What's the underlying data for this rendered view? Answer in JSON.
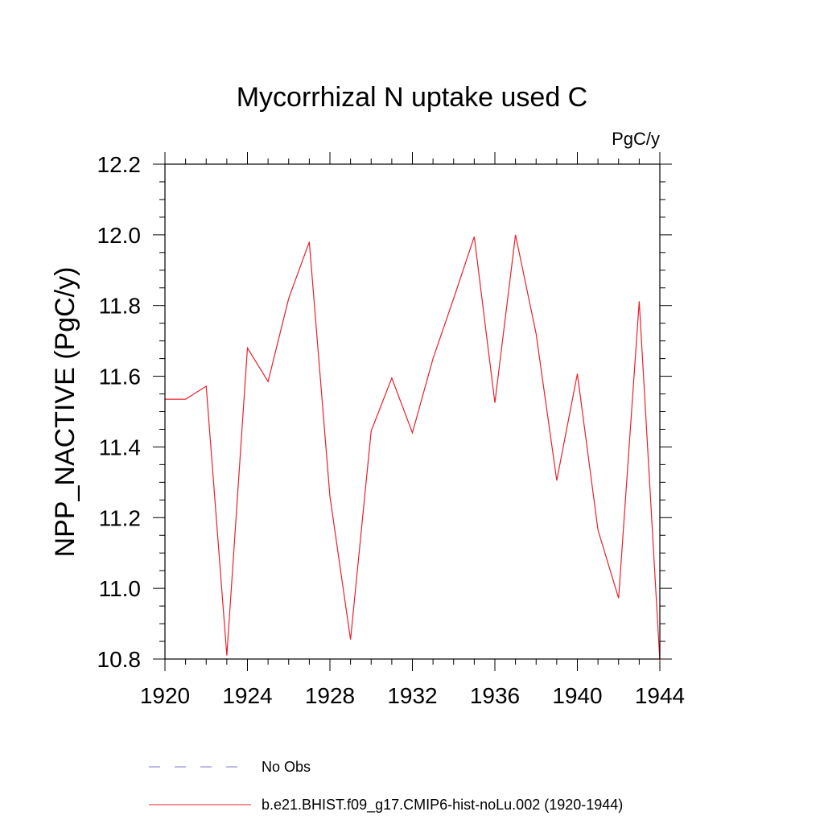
{
  "chart_data": {
    "type": "line",
    "title": "Mycorrhizal N uptake used C",
    "units_label": "PgC/y",
    "ylabel": "NPP_NACTIVE  (PgC/y)",
    "xlabel": "",
    "xlim": [
      1920,
      1944
    ],
    "ylim": [
      10.8,
      12.2
    ],
    "x_ticks": [
      1920,
      1924,
      1928,
      1932,
      1936,
      1940,
      1944
    ],
    "y_ticks": [
      10.8,
      11.0,
      11.2,
      11.4,
      11.6,
      11.8,
      12.0,
      12.2
    ],
    "x_tick_labels": [
      "1920",
      "1924",
      "1928",
      "1932",
      "1936",
      "1940",
      "1944"
    ],
    "y_tick_labels": [
      "10.8",
      "11.0",
      "11.2",
      "11.4",
      "11.6",
      "11.8",
      "12.0",
      "12.2"
    ],
    "grid": false,
    "legend_placement": "bottom",
    "series": [
      {
        "name": "No Obs",
        "color": "#7b7bd6",
        "style": "dashed",
        "x": [],
        "values": []
      },
      {
        "name": "b.e21.BHIST.f09_g17.CMIP6-hist-noLu.002 (1920-1944)",
        "color": "#e8202a",
        "style": "solid",
        "x": [
          1920,
          1921,
          1922,
          1923,
          1924,
          1925,
          1926,
          1927,
          1928,
          1929,
          1930,
          1931,
          1932,
          1933,
          1934,
          1935,
          1936,
          1937,
          1938,
          1939,
          1940,
          1941,
          1942,
          1943,
          1944
        ],
        "values": [
          11.535,
          11.535,
          11.572,
          10.81,
          11.68,
          11.585,
          11.82,
          11.98,
          11.26,
          10.855,
          11.445,
          11.595,
          11.44,
          11.65,
          11.82,
          11.995,
          11.525,
          12.0,
          11.72,
          11.305,
          11.607,
          11.165,
          10.972,
          11.812,
          10.795
        ]
      }
    ]
  }
}
